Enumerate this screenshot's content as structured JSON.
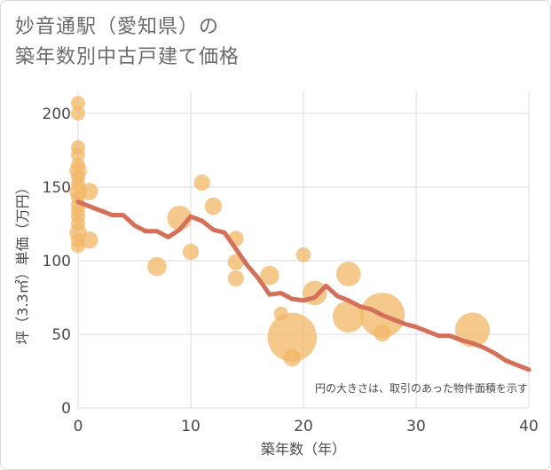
{
  "title_line1": "妙音通駅（愛知県）の",
  "title_line2": "築年数別中古戸建て価格",
  "chart_data": {
    "type": "scatter",
    "xlabel": "築年数（年）",
    "ylabel": "坪（3.3㎡）単価（万円）",
    "xlim": [
      0,
      40
    ],
    "ylim": [
      0,
      215
    ],
    "xticks": [
      0,
      10,
      20,
      30,
      40
    ],
    "yticks": [
      0,
      50,
      100,
      150,
      200
    ],
    "grid": true,
    "note": "円の大きさは、取引のあった物件面積を示す",
    "colors": {
      "bubble": "#f2b96a",
      "line": "#d4705a",
      "grid": "#d6dde6"
    },
    "bubbles": [
      {
        "x": 0,
        "y": 207,
        "size": 1
      },
      {
        "x": 0,
        "y": 200,
        "size": 1
      },
      {
        "x": 0,
        "y": 177,
        "size": 1
      },
      {
        "x": 0,
        "y": 172,
        "size": 1
      },
      {
        "x": 0,
        "y": 165,
        "size": 1
      },
      {
        "x": 0,
        "y": 161,
        "size": 1.5
      },
      {
        "x": 0,
        "y": 157,
        "size": 1
      },
      {
        "x": 0,
        "y": 152,
        "size": 1
      },
      {
        "x": 0,
        "y": 147,
        "size": 1.5
      },
      {
        "x": 0,
        "y": 143,
        "size": 1
      },
      {
        "x": 0,
        "y": 138,
        "size": 1
      },
      {
        "x": 0,
        "y": 134,
        "size": 1
      },
      {
        "x": 0,
        "y": 130,
        "size": 1
      },
      {
        "x": 0,
        "y": 125,
        "size": 1
      },
      {
        "x": 0,
        "y": 119,
        "size": 1.5
      },
      {
        "x": 0,
        "y": 114,
        "size": 1
      },
      {
        "x": 0,
        "y": 110,
        "size": 1
      },
      {
        "x": 1,
        "y": 147,
        "size": 1.5
      },
      {
        "x": 1,
        "y": 114,
        "size": 1.5
      },
      {
        "x": 7,
        "y": 96,
        "size": 1.8
      },
      {
        "x": 9,
        "y": 129,
        "size": 3
      },
      {
        "x": 10,
        "y": 106,
        "size": 1.3
      },
      {
        "x": 11,
        "y": 153,
        "size": 1.3
      },
      {
        "x": 12,
        "y": 137,
        "size": 1.5
      },
      {
        "x": 14,
        "y": 115,
        "size": 1.2
      },
      {
        "x": 14,
        "y": 99,
        "size": 1.3
      },
      {
        "x": 14,
        "y": 88,
        "size": 1.3
      },
      {
        "x": 17,
        "y": 90,
        "size": 1.8
      },
      {
        "x": 18,
        "y": 64,
        "size": 1
      },
      {
        "x": 19,
        "y": 48,
        "size": 12
      },
      {
        "x": 19,
        "y": 34,
        "size": 1.5
      },
      {
        "x": 20,
        "y": 104,
        "size": 1.1
      },
      {
        "x": 21,
        "y": 78,
        "size": 3
      },
      {
        "x": 24,
        "y": 91,
        "size": 3
      },
      {
        "x": 24,
        "y": 62,
        "size": 5
      },
      {
        "x": 27,
        "y": 63,
        "size": 10
      },
      {
        "x": 27,
        "y": 51,
        "size": 1.5
      },
      {
        "x": 35,
        "y": 53,
        "size": 6
      }
    ],
    "trend_line": {
      "x": [
        0,
        1,
        2,
        3,
        4,
        5,
        6,
        7,
        8,
        9,
        10,
        11,
        12,
        13,
        14,
        15,
        16,
        17,
        18,
        19,
        20,
        21,
        22,
        23,
        24,
        25,
        26,
        27,
        28,
        29,
        30,
        31,
        32,
        33,
        34,
        35,
        36,
        37,
        38,
        39,
        40
      ],
      "y": [
        140,
        137,
        134,
        131,
        131,
        124,
        120,
        120,
        116,
        121,
        130,
        127,
        121,
        119,
        108,
        97,
        88,
        77,
        78,
        74,
        73,
        75,
        83,
        76,
        73,
        69,
        67,
        63,
        60,
        57,
        55,
        52,
        49,
        49,
        46,
        44,
        41,
        37,
        32,
        29,
        26
      ]
    }
  }
}
